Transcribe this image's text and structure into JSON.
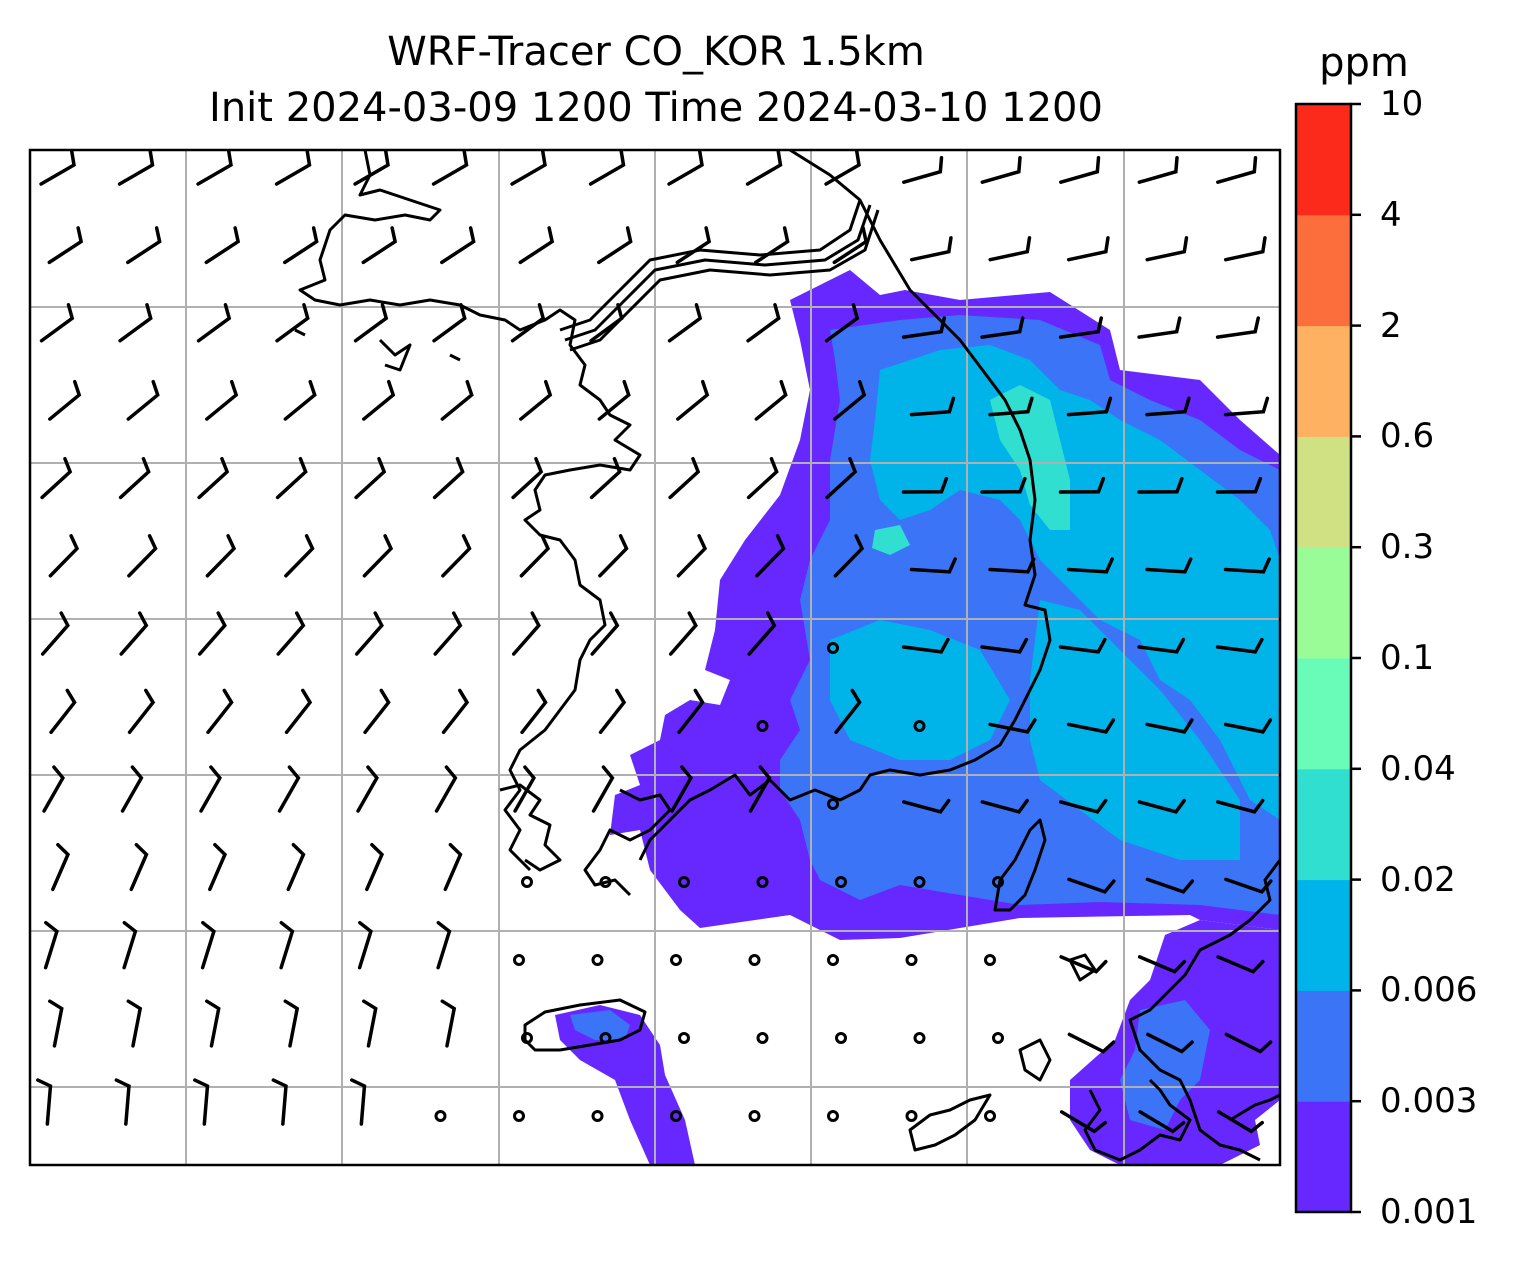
{
  "title": {
    "line1": "WRF-Tracer CO_KOR 1.5km",
    "line2": "Init 2024-03-09 1200 Time 2024-03-10 1200"
  },
  "colorbar": {
    "unit": "ppm",
    "levels": [
      "0.001",
      "0.003",
      "0.006",
      "0.02",
      "0.04",
      "0.1",
      "0.3",
      "0.6",
      "2",
      "4",
      "10"
    ],
    "colors": [
      "#6628fe",
      "#3b74f7",
      "#00b4ea",
      "#30dfd0",
      "#69fcb9",
      "#99fc96",
      "#d0e183",
      "#fdb161",
      "#fd6e3d",
      "#fb2a1a"
    ]
  },
  "map": {
    "gridlines": true,
    "overlays": [
      "coastlines",
      "wind-barbs",
      "calm-circles",
      "co-tracer-concentration"
    ]
  }
}
